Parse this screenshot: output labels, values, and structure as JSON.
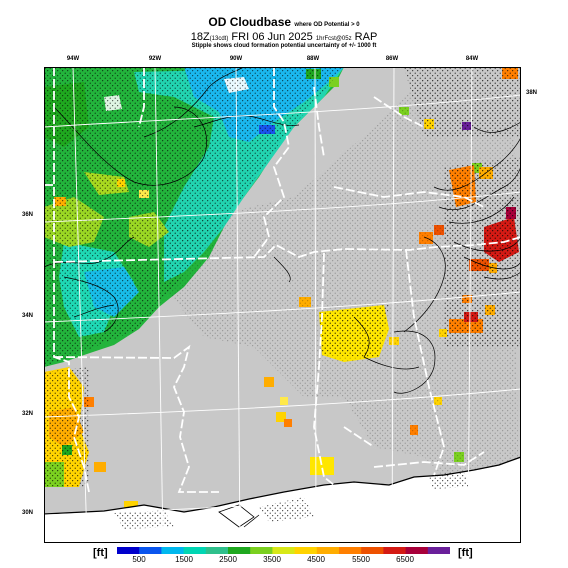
{
  "title": {
    "main": "OD Cloudbase",
    "condition": "where OD Potential > 0",
    "valid_time": "18Z",
    "valid_suffix": "(13cdt)",
    "date": "FRI 06 Jun 2025",
    "forecast": "1hrFcst@05z",
    "model": "RAP",
    "note": "Stipple shows cloud formation potential uncertainty of +/- 1000 ft"
  },
  "longitude_labels": [
    "94W",
    "92W",
    "90W",
    "88W",
    "86W",
    "84W"
  ],
  "latitude_labels": [
    "38N",
    "36N",
    "34N",
    "32N",
    "30N"
  ],
  "colorbar": {
    "unit": "[ft]",
    "ticks": [
      "500",
      "1500",
      "2500",
      "3500",
      "4500",
      "5500",
      "6500"
    ],
    "colors": [
      "#0000cc",
      "#0a55ee",
      "#00b8ee",
      "#00d6b4",
      "#2fc08c",
      "#1fa81f",
      "#7bd020",
      "#d8e818",
      "#ffd300",
      "#ffad00",
      "#ff7f00",
      "#ee5100",
      "#d41a14",
      "#a8003a",
      "#6a1f9a"
    ]
  }
}
